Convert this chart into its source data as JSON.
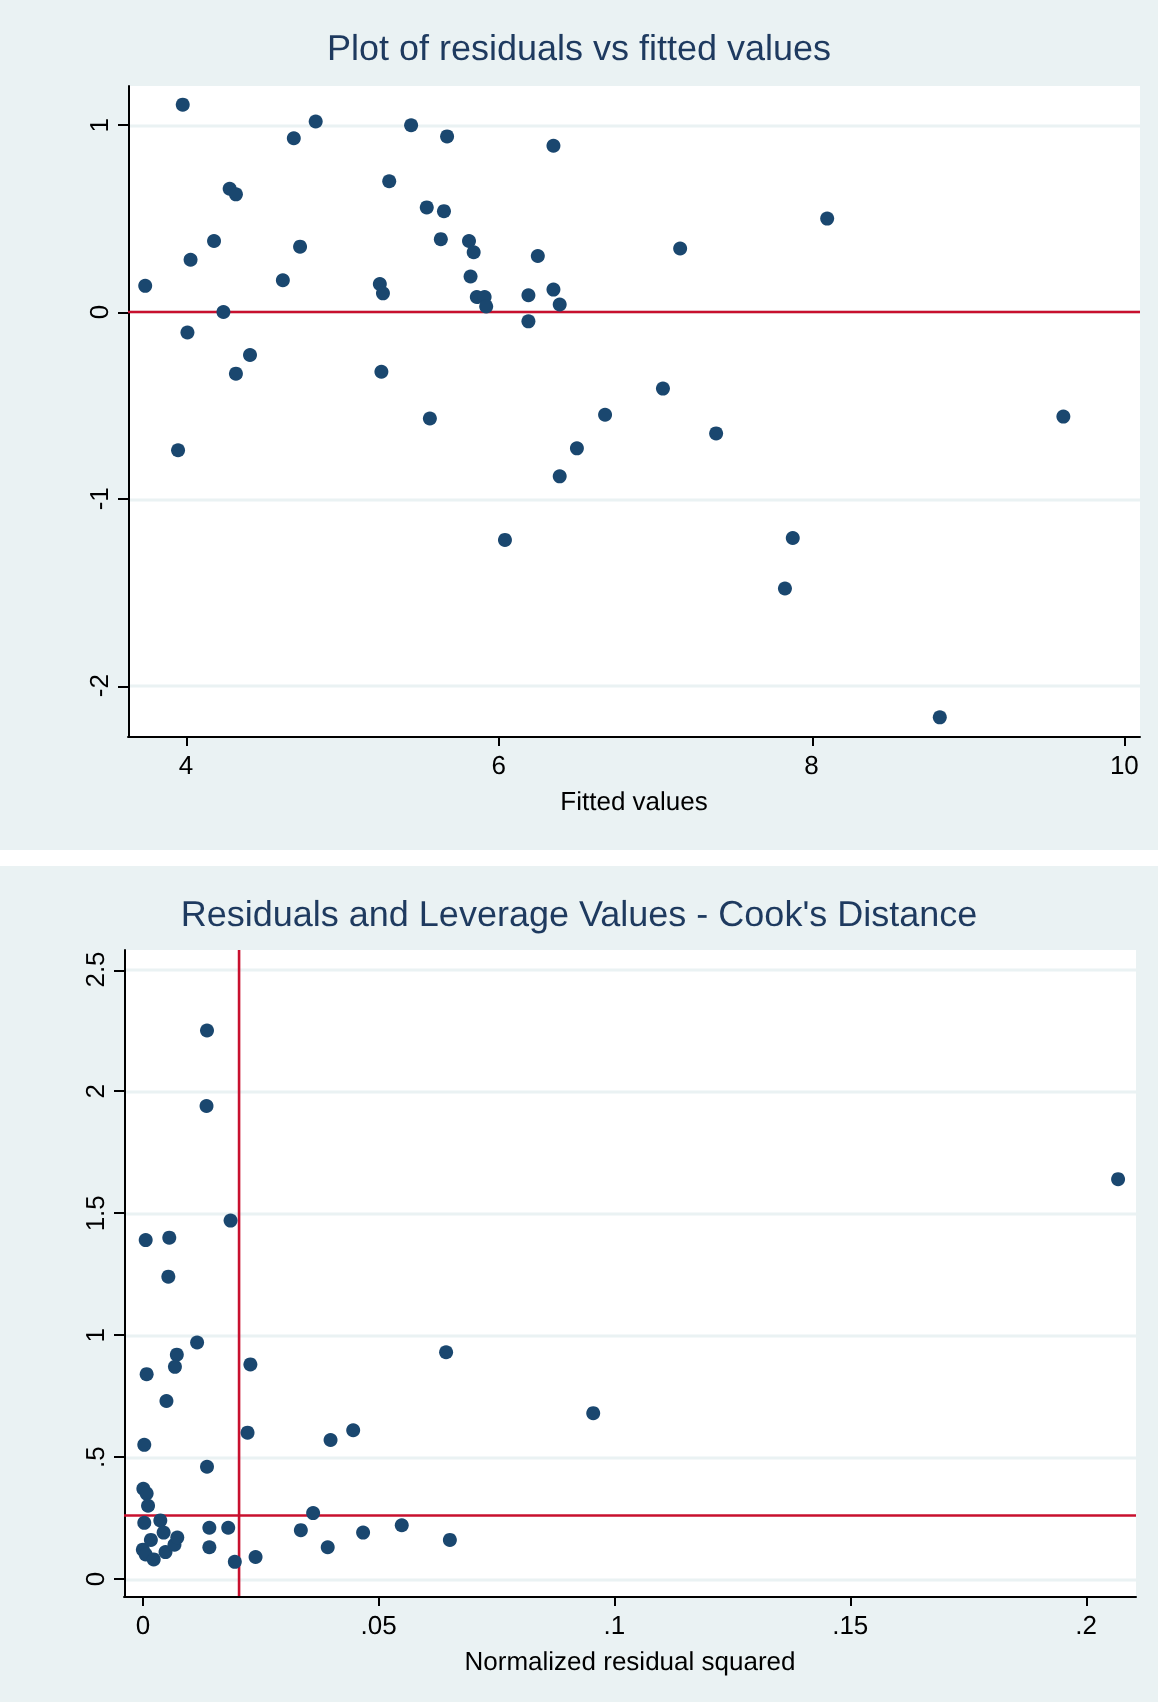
{
  "chart_data": [
    {
      "type": "scatter",
      "title": "Plot of residuals vs fitted values",
      "xlabel": "Fitted values",
      "x": [
        3.74,
        3.98,
        3.95,
        4.01,
        4.03,
        4.18,
        4.24,
        4.28,
        4.32,
        4.32,
        4.41,
        4.62,
        4.69,
        4.73,
        4.83,
        5.24,
        5.26,
        5.25,
        5.3,
        5.44,
        5.54,
        5.65,
        5.56,
        5.67,
        5.63,
        5.81,
        5.84,
        5.82,
        5.86,
        5.91,
        5.92,
        6.04,
        6.19,
        6.19,
        6.25,
        6.35,
        6.35,
        6.39,
        6.39,
        6.5,
        6.68,
        7.05,
        7.16,
        7.39,
        7.83,
        7.88,
        8.1,
        8.82,
        9.61
      ],
      "series": [
        {
          "color": "#1a476f",
          "values": [
            0.14,
            1.11,
            -0.74,
            -0.11,
            0.28,
            0.38,
            0.0,
            0.66,
            0.63,
            -0.33,
            -0.23,
            0.17,
            0.93,
            0.35,
            1.02,
            0.15,
            0.1,
            -0.32,
            0.7,
            1.0,
            0.56,
            0.54,
            -0.57,
            0.94,
            0.39,
            0.38,
            0.32,
            0.19,
            0.08,
            0.08,
            0.03,
            -1.22,
            0.09,
            -0.05,
            0.3,
            0.89,
            0.12,
            0.04,
            -0.88,
            -0.73,
            -0.55,
            -0.41,
            0.34,
            -0.65,
            -1.48,
            -1.21,
            0.5,
            -2.17,
            -0.56
          ]
        }
      ],
      "xlim": [
        3.63,
        10.1
      ],
      "xticks": [
        4,
        6,
        8,
        10
      ],
      "ylim": [
        -2.27,
        1.21
      ],
      "yticks": [
        -2,
        -1,
        0,
        1
      ],
      "ref_lines": [
        {
          "axis": "y",
          "value": 0,
          "color": "#c8102e"
        }
      ],
      "grid": "y",
      "marker": "circle"
    },
    {
      "type": "scatter",
      "title": "Residuals and Leverage Values - Cook's Distance",
      "xlabel": "Normalized residual squared",
      "x": [
        0.0136,
        0.0135,
        0.0186,
        0.0006,
        0.0056,
        0.0054,
        0.0115,
        0.0072,
        0.0068,
        0.0008,
        0.0228,
        0.005,
        0.0222,
        0.0003,
        0.0136,
        0.0398,
        0.0446,
        0.0001,
        0.0008,
        0.0011,
        0.0003,
        0.0037,
        0.0141,
        0.0181,
        0.0335,
        0.0361,
        0.0392,
        0.0239,
        0.0195,
        0.0141,
        0.0,
        0.0006,
        0.0017,
        0.0023,
        0.0044,
        0.0048,
        0.0067,
        0.0073,
        0.2068,
        0.0643,
        0.0955,
        0.0467,
        0.0549,
        0.0651
      ],
      "series": [
        {
          "color": "#1a476f",
          "values": [
            2.25,
            1.94,
            1.47,
            1.39,
            1.4,
            1.24,
            0.97,
            0.92,
            0.87,
            0.84,
            0.88,
            0.73,
            0.6,
            0.55,
            0.46,
            0.57,
            0.61,
            0.37,
            0.35,
            0.3,
            0.23,
            0.24,
            0.21,
            0.21,
            0.2,
            0.27,
            0.13,
            0.09,
            0.07,
            0.13,
            0.12,
            0.1,
            0.16,
            0.08,
            0.19,
            0.11,
            0.14,
            0.17,
            1.64,
            0.93,
            0.68,
            0.19,
            0.22,
            0.16
          ]
        }
      ],
      "xlim": [
        -0.004,
        0.2106
      ],
      "xticks": [
        0,
        {
          "value": 0.05,
          "label": ".05"
        },
        {
          "value": 0.1,
          "label": ".1"
        },
        {
          "value": 0.15,
          "label": ".15"
        },
        {
          "value": 0.2,
          "label": ".2"
        }
      ],
      "ylim": [
        -0.07,
        2.58
      ],
      "yticks": [
        0,
        {
          "value": 0.5,
          "label": ".5"
        },
        1,
        1.5,
        2,
        2.5
      ],
      "ref_lines": [
        {
          "axis": "x",
          "value": 0.0204,
          "color": "#c8102e"
        },
        {
          "axis": "y",
          "value": 0.26,
          "color": "#c8102e"
        }
      ],
      "grid": "y",
      "marker": "circle"
    }
  ]
}
